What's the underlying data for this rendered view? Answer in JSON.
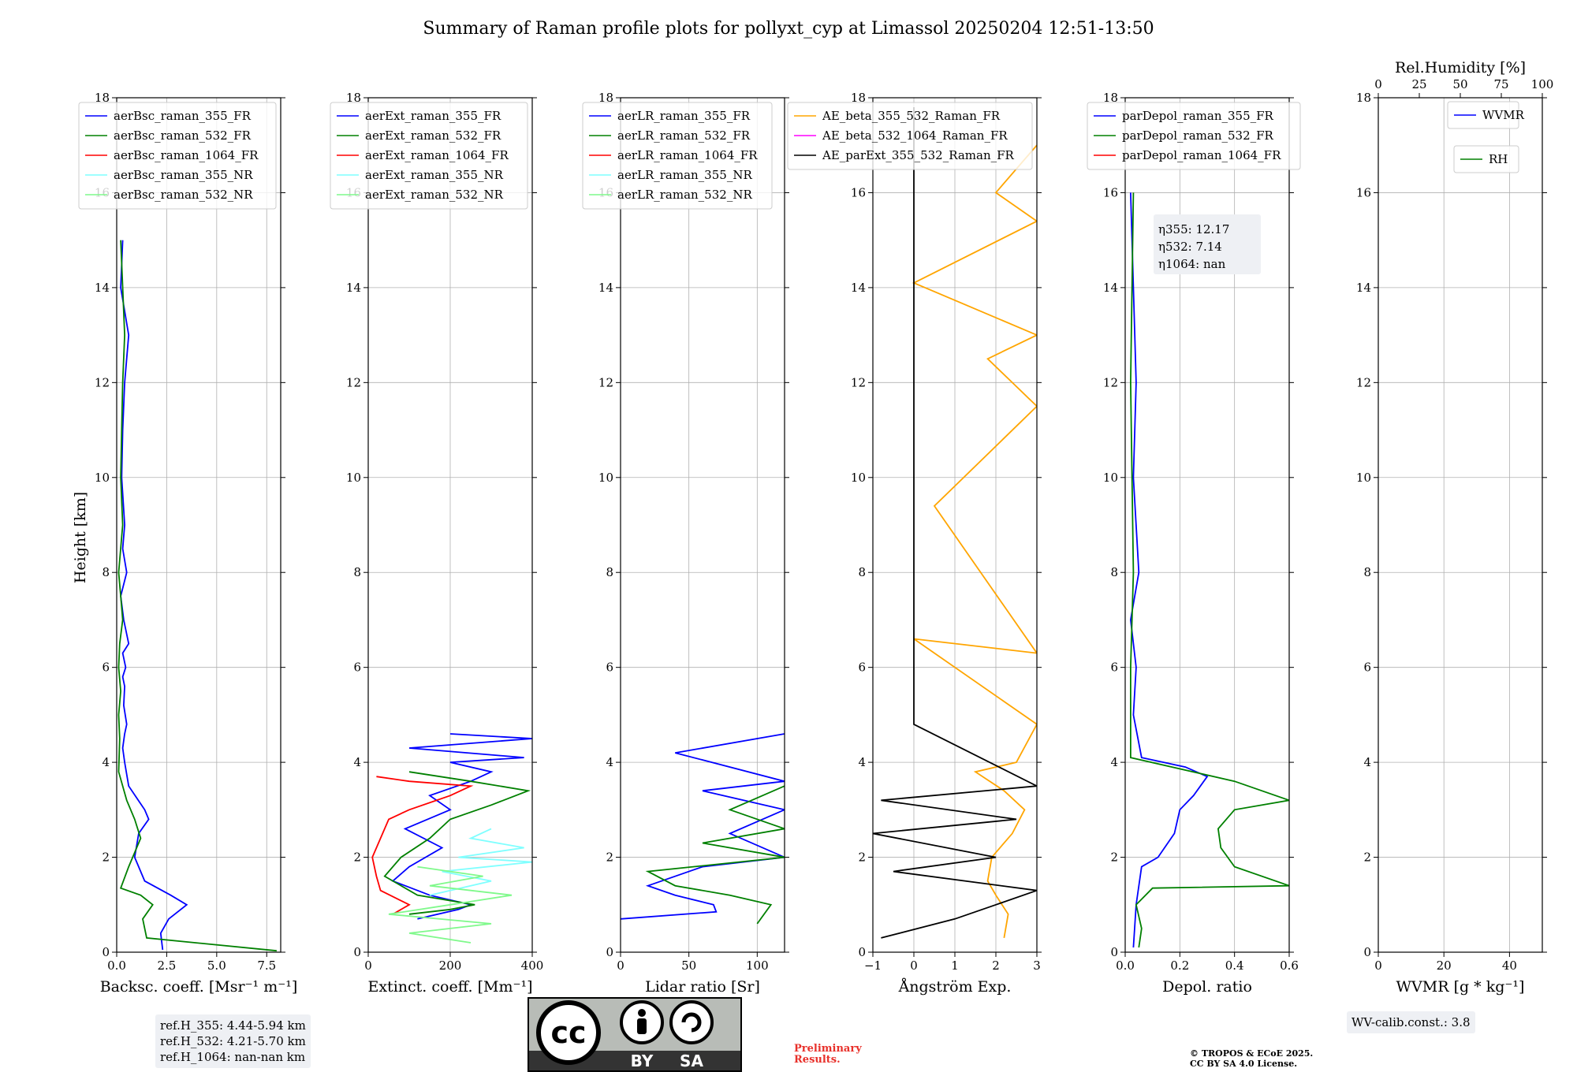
{
  "title": "Summary of Raman profile plots for pollyxt_cyp at Limassol 20250204 12:51-13:50",
  "ylabel": "Height [km]",
  "chart_data": [
    {
      "type": "line",
      "id": "bsc",
      "xlabel": "Backsc. coeff. [Msr⁻¹ m⁻¹]",
      "xlim": [
        0,
        8.2
      ],
      "ylim": [
        0,
        18
      ],
      "xticks": [
        0,
        2.5,
        5,
        7.5
      ],
      "xtick_labels": [
        "0.0",
        "2.5",
        "5.0",
        "7.5"
      ],
      "legend": [
        "aerBsc_raman_355_FR",
        "aerBsc_raman_532_FR",
        "aerBsc_raman_1064_FR",
        "aerBsc_raman_355_NR",
        "aerBsc_raman_532_NR"
      ],
      "series": [
        {
          "name": "aerBsc_raman_355_FR",
          "color": "#0000ff",
          "x": [
            2.3,
            2.2,
            2.6,
            3.5,
            2.7,
            1.4,
            0.9,
            1.1,
            1.6,
            1.4,
            0.6,
            0.4,
            0.3,
            0.4,
            0.5,
            0.35,
            0.4,
            0.3,
            0.45,
            0.3,
            0.6,
            0.35,
            0.2,
            0.5,
            0.3,
            0.4,
            0.25,
            0.3,
            0.4,
            0.6,
            0.2,
            0.3
          ],
          "y": [
            0.05,
            0.4,
            0.7,
            1.0,
            1.2,
            1.5,
            2.0,
            2.5,
            2.8,
            3.0,
            3.5,
            4.0,
            4.3,
            4.6,
            4.8,
            5.2,
            5.6,
            5.8,
            6.0,
            6.3,
            6.5,
            7.0,
            7.5,
            8.0,
            8.5,
            9.0,
            10.0,
            11.0,
            12.0,
            13.0,
            14.0,
            15.0
          ]
        },
        {
          "name": "aerBsc_raman_532_FR",
          "color": "#008000",
          "x": [
            8.0,
            1.5,
            1.3,
            1.8,
            1.2,
            0.2,
            0.6,
            1.2,
            0.9,
            0.5,
            0.1,
            0.15,
            0.1,
            0.2,
            0.1,
            0.15,
            0.3,
            0.2,
            0.1,
            0.3,
            0.2,
            0.25,
            0.3,
            0.4,
            0.3,
            0.2
          ],
          "y": [
            0.03,
            0.3,
            0.7,
            1.0,
            1.2,
            1.35,
            1.8,
            2.4,
            2.8,
            3.2,
            3.8,
            4.5,
            5.0,
            5.5,
            6.0,
            6.5,
            7.0,
            7.5,
            8.0,
            9.0,
            10.0,
            11.0,
            12.0,
            13.0,
            14.0,
            15.0
          ]
        }
      ]
    },
    {
      "type": "line",
      "id": "ext",
      "xlabel": "Extinct. coeff. [Mm⁻¹]",
      "xlim": [
        0,
        400
      ],
      "ylim": [
        0,
        18
      ],
      "xticks": [
        0,
        200,
        400
      ],
      "xtick_labels": [
        "0",
        "200",
        "400"
      ],
      "legend": [
        "aerExt_raman_355_FR",
        "aerExt_raman_532_FR",
        "aerExt_raman_1064_FR",
        "aerExt_raman_355_NR",
        "aerExt_raman_532_NR"
      ],
      "series": [
        {
          "name": "aerExt_raman_355_FR",
          "color": "#0000ff",
          "x": [
            120,
            220,
            250,
            150,
            60,
            100,
            180,
            90,
            200,
            150,
            250,
            300,
            200,
            380,
            100,
            400,
            200
          ],
          "y": [
            0.7,
            0.9,
            1.0,
            1.2,
            1.5,
            1.8,
            2.2,
            2.6,
            3.0,
            3.3,
            3.6,
            3.8,
            4.0,
            4.1,
            4.3,
            4.5,
            4.6
          ]
        },
        {
          "name": "aerExt_raman_532_FR",
          "color": "#008000",
          "x": [
            100,
            200,
            260,
            120,
            40,
            80,
            150,
            200,
            300,
            390,
            250,
            100
          ],
          "y": [
            0.8,
            0.9,
            1.0,
            1.2,
            1.6,
            2.0,
            2.4,
            2.8,
            3.1,
            3.4,
            3.6,
            3.8
          ]
        },
        {
          "name": "aerExt_raman_1064_FR",
          "color": "#ff0000",
          "x": [
            60,
            100,
            30,
            20,
            10,
            30,
            50,
            100,
            200,
            250,
            100,
            20
          ],
          "y": [
            0.8,
            1.0,
            1.3,
            1.6,
            2.0,
            2.4,
            2.8,
            3.0,
            3.3,
            3.5,
            3.6,
            3.7
          ]
        },
        {
          "name": "aerExt_raman_355_NR",
          "color": "#7fffff",
          "x": [
            150,
            300,
            180,
            400,
            220,
            380,
            250,
            300
          ],
          "y": [
            1.2,
            1.5,
            1.7,
            1.9,
            2.0,
            2.2,
            2.4,
            2.6
          ]
        },
        {
          "name": "aerExt_raman_532_NR",
          "color": "#7ff98b",
          "x": [
            250,
            100,
            300,
            50,
            200,
            350,
            150,
            280,
            120
          ],
          "y": [
            0.2,
            0.4,
            0.6,
            0.8,
            1.0,
            1.2,
            1.4,
            1.6,
            1.8
          ]
        }
      ]
    },
    {
      "type": "line",
      "id": "lr",
      "xlabel": "Lidar ratio [Sr]",
      "xlim": [
        0,
        120
      ],
      "ylim": [
        0,
        18
      ],
      "xticks": [
        0,
        50,
        100
      ],
      "xtick_labels": [
        "0",
        "50",
        "100"
      ],
      "legend": [
        "aerLR_raman_355_FR",
        "aerLR_raman_532_FR",
        "aerLR_raman_1064_FR",
        "aerLR_raman_355_NR",
        "aerLR_raman_532_NR"
      ],
      "series": [
        {
          "name": "aerLR_raman_355_FR",
          "color": "#0000ff",
          "x": [
            0,
            70,
            68,
            40,
            20,
            60,
            120,
            80,
            120,
            60,
            120,
            40,
            120
          ],
          "y": [
            0.7,
            0.85,
            1.0,
            1.2,
            1.4,
            1.8,
            2.0,
            2.5,
            3.0,
            3.4,
            3.6,
            4.2,
            4.6
          ]
        },
        {
          "name": "aerLR_raman_532_FR",
          "color": "#008000",
          "x": [
            100,
            110,
            80,
            40,
            20,
            120,
            60,
            120,
            80,
            120
          ],
          "y": [
            0.6,
            1.0,
            1.2,
            1.4,
            1.7,
            2.0,
            2.3,
            2.6,
            3.0,
            3.5
          ]
        }
      ]
    },
    {
      "type": "line",
      "id": "ae",
      "xlabel": "Ångström Exp.",
      "xlim": [
        -1,
        3
      ],
      "ylim": [
        0,
        18
      ],
      "xticks": [
        -1,
        0,
        1,
        2,
        3
      ],
      "xtick_labels": [
        "−1",
        "0",
        "1",
        "2",
        "3"
      ],
      "legend": [
        "AE_beta_355_532_Raman_FR",
        "AE_beta_532_1064_Raman_FR",
        "AE_parExt_355_532_Raman_FR"
      ],
      "series": [
        {
          "name": "AE_beta_355_532_Raman_FR",
          "color": "#ffa500",
          "x": [
            2.2,
            2.3,
            2.0,
            1.8,
            1.9,
            2.4,
            2.7,
            2.2,
            1.5,
            2.5,
            3.0,
            0,
            3.0,
            0.5,
            3.0,
            1.8,
            3.0,
            0,
            3.0,
            2.0,
            3.0
          ],
          "y": [
            0.3,
            0.8,
            1.2,
            1.5,
            2.0,
            2.5,
            3.0,
            3.4,
            3.8,
            4.0,
            4.8,
            6.6,
            6.3,
            9.4,
            11.5,
            12.5,
            13.0,
            14.1,
            15.4,
            16.0,
            17.0
          ]
        },
        {
          "name": "AE_parExt_355_532_Raman_FR",
          "color": "#000000",
          "x": [
            -0.8,
            1.0,
            2.0,
            3.0,
            -0.5,
            2.0,
            -1.0,
            2.5,
            -0.8,
            3.0,
            0,
            0,
            0
          ],
          "y": [
            0.3,
            0.7,
            1.0,
            1.3,
            1.7,
            2.0,
            2.5,
            2.8,
            3.2,
            3.5,
            4.8,
            10.0,
            17.8
          ]
        }
      ]
    },
    {
      "type": "line",
      "id": "dep",
      "xlabel": "Depol. ratio",
      "xlim": [
        0,
        0.6
      ],
      "ylim": [
        0,
        18
      ],
      "xticks": [
        0,
        0.2,
        0.4,
        0.6
      ],
      "xtick_labels": [
        "0.0",
        "0.2",
        "0.4",
        "0.6"
      ],
      "legend": [
        "parDepol_raman_355_FR",
        "parDepol_raman_532_FR",
        "parDepol_raman_1064_FR"
      ],
      "annotation": [
        "η355: 12.17",
        "η532: 7.14",
        "η1064: nan"
      ],
      "series": [
        {
          "name": "parDepol_raman_355_FR",
          "color": "#0000ff",
          "x": [
            0.03,
            0.04,
            0.06,
            0.12,
            0.18,
            0.2,
            0.25,
            0.3,
            0.22,
            0.06,
            0.03,
            0.04,
            0.02,
            0.05,
            0.03,
            0.04,
            0.02
          ],
          "y": [
            0.1,
            1.0,
            1.8,
            2.0,
            2.5,
            3.0,
            3.3,
            3.7,
            3.9,
            4.1,
            5.0,
            6.0,
            7.0,
            8.0,
            10.0,
            12.0,
            16.0
          ]
        },
        {
          "name": "parDepol_raman_532_FR",
          "color": "#008000",
          "x": [
            0.05,
            0.06,
            0.04,
            0.1,
            0.6,
            0.4,
            0.35,
            0.34,
            0.4,
            0.6,
            0.4,
            0.02,
            0.02,
            0.03,
            0.02,
            0.03
          ],
          "y": [
            0.1,
            0.5,
            1.0,
            1.35,
            1.4,
            1.8,
            2.2,
            2.6,
            3.0,
            3.2,
            3.6,
            4.1,
            6.0,
            8.0,
            12.0,
            16.0
          ]
        }
      ]
    },
    {
      "type": "line",
      "id": "wv",
      "xlabel": "WVMR [g * kg⁻¹]",
      "xlim": [
        0,
        50
      ],
      "ylim": [
        0,
        18
      ],
      "xticks": [
        0,
        20,
        40
      ],
      "xtick_labels": [
        "0",
        "20",
        "40"
      ],
      "top_label": "Rel.Humidity [%]",
      "top_xticks": [
        "0",
        "25",
        "50",
        "75",
        "100"
      ],
      "legend": [
        "WVMR",
        "RH"
      ],
      "series": []
    }
  ],
  "yticks": [
    "0",
    "2",
    "4",
    "6",
    "8",
    "10",
    "12",
    "14",
    "16",
    "18"
  ],
  "refh": [
    "ref.H_355: 4.44-5.94 km",
    "ref.H_532: 4.21-5.70 km",
    "ref.H_1064: nan-nan km"
  ],
  "wv_calib": "WV-calib.const.: 3.8",
  "preliminary": [
    "Preliminary",
    "Results."
  ],
  "copyright": [
    "© TROPOS & ECoE 2025.",
    "CC BY SA 4.0 License."
  ],
  "license_badge": [
    "cc",
    "BY",
    "SA"
  ],
  "colors": {
    "cc_grey": "#b8bcb7",
    "cc_dark": "#333333"
  }
}
